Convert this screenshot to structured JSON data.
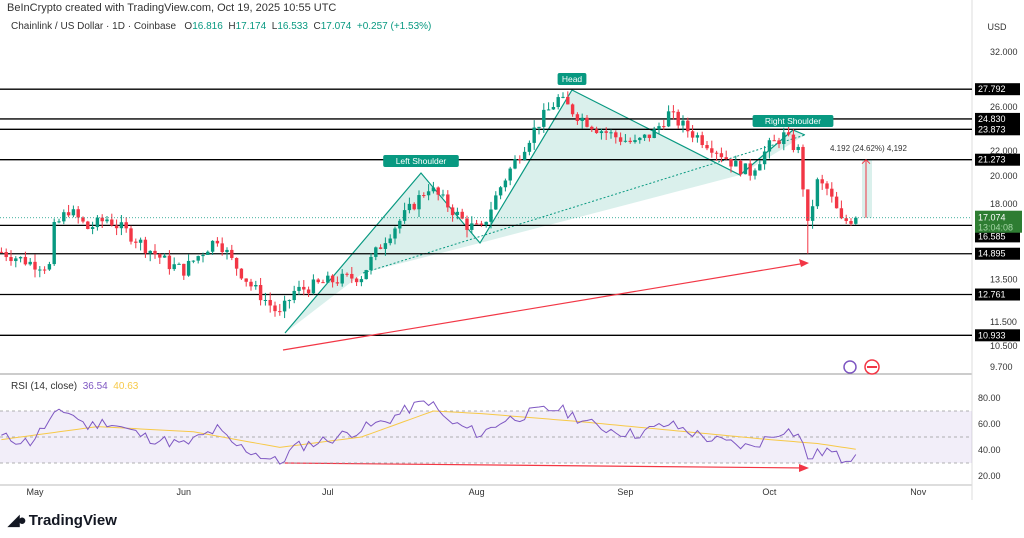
{
  "credit": "BeInCrypto created with TradingView.com, Oct 19, 2025 10:55 UTC",
  "legend": {
    "symbol": "Chainlink / US Dollar · 1D · Coinbase",
    "o_label": "O",
    "o": "16.816",
    "h_label": "H",
    "h": "17.174",
    "l_label": "L",
    "l": "16.533",
    "c_label": "C",
    "c": "17.074",
    "change": "+0.257 (+1.53%)"
  },
  "currency": "USD",
  "rsi": {
    "label": "RSI (14, close)",
    "value": "36.54",
    "ma": "40.63"
  },
  "logo": "TradingView",
  "chart_data": [
    {
      "type": "candlestick",
      "title": "Chainlink / US Dollar · 1D · Coinbase",
      "scale": "log",
      "ylim": [
        9.7,
        32
      ],
      "y_ticks": [
        "32.000",
        "26.000",
        "22.000",
        "20.000",
        "18.000",
        "13.500",
        "11.500",
        "10.500",
        "9.700"
      ],
      "x_ticks": [
        {
          "label": "May",
          "day": 7
        },
        {
          "label": "Jun",
          "day": 38
        },
        {
          "label": "Jul",
          "day": 68
        },
        {
          "label": "Aug",
          "day": 99
        },
        {
          "label": "Sep",
          "day": 130
        },
        {
          "label": "Oct",
          "day": 160
        },
        {
          "label": "Nov",
          "day": 191
        }
      ],
      "start": "Apr 24",
      "price_keyframes": [
        [
          0,
          15.0
        ],
        [
          6,
          14.4
        ],
        [
          10,
          14.2
        ],
        [
          11,
          16.4
        ],
        [
          14,
          17.6
        ],
        [
          18,
          16.4
        ],
        [
          22,
          17.0
        ],
        [
          26,
          16.2
        ],
        [
          30,
          15.3
        ],
        [
          35,
          14.3
        ],
        [
          38,
          14.0
        ],
        [
          45,
          15.8
        ],
        [
          48,
          14.5
        ],
        [
          52,
          13.2
        ],
        [
          58,
          11.8
        ],
        [
          61,
          12.9
        ],
        [
          68,
          13.4
        ],
        [
          75,
          13.7
        ],
        [
          80,
          15.8
        ],
        [
          85,
          17.6
        ],
        [
          89,
          19.2
        ],
        [
          93,
          17.9
        ],
        [
          97,
          16.6
        ],
        [
          100,
          16.3
        ],
        [
          104,
          19.2
        ],
        [
          108,
          21.8
        ],
        [
          112,
          24.5
        ],
        [
          116,
          26.8
        ],
        [
          120,
          25.2
        ],
        [
          124,
          24.0
        ],
        [
          128,
          23.2
        ],
        [
          132,
          22.6
        ],
        [
          136,
          23.6
        ],
        [
          139,
          25.3
        ],
        [
          143,
          23.8
        ],
        [
          148,
          22.4
        ],
        [
          153,
          20.8
        ],
        [
          156,
          20.3
        ],
        [
          160,
          22.4
        ],
        [
          163,
          23.3
        ],
        [
          166,
          22.0
        ],
        [
          168,
          16.5
        ],
        [
          170,
          19.5
        ],
        [
          172,
          19.0
        ],
        [
          175,
          16.8
        ],
        [
          178,
          17.07
        ]
      ],
      "horizontal_levels": [
        "27.792",
        "24.830",
        "23.873",
        "21.273",
        "16.585",
        "14.895",
        "12.761",
        "10.933"
      ],
      "last_price": "17.074",
      "countdown": "13:04:08",
      "annotations": {
        "left_shoulder": "Left Shoulder",
        "head": "Head",
        "right_shoulder": "Right Shoulder",
        "measure": "4.192 (24.62%) 4,192"
      }
    },
    {
      "type": "line",
      "title": "RSI (14, close)",
      "ylim": [
        20,
        80
      ],
      "y_ticks": [
        "80.00",
        "60.00",
        "40.00",
        "20.00"
      ],
      "band": [
        30,
        70
      ],
      "rsi_keyframes": [
        [
          0,
          50
        ],
        [
          6,
          46
        ],
        [
          11,
          66
        ],
        [
          14,
          70
        ],
        [
          18,
          58
        ],
        [
          22,
          62
        ],
        [
          30,
          50
        ],
        [
          38,
          44
        ],
        [
          45,
          56
        ],
        [
          48,
          45
        ],
        [
          58,
          30
        ],
        [
          61,
          42
        ],
        [
          68,
          48
        ],
        [
          80,
          62
        ],
        [
          85,
          72
        ],
        [
          89,
          78
        ],
        [
          93,
          62
        ],
        [
          100,
          52
        ],
        [
          104,
          62
        ],
        [
          112,
          70
        ],
        [
          116,
          72
        ],
        [
          124,
          58
        ],
        [
          132,
          52
        ],
        [
          139,
          60
        ],
        [
          148,
          48
        ],
        [
          156,
          42
        ],
        [
          163,
          56
        ],
        [
          166,
          52
        ],
        [
          168,
          34
        ],
        [
          172,
          40
        ],
        [
          175,
          33
        ],
        [
          178,
          36.5
        ]
      ],
      "ma_keyframes": [
        [
          0,
          48
        ],
        [
          20,
          58
        ],
        [
          40,
          54
        ],
        [
          58,
          42
        ],
        [
          75,
          50
        ],
        [
          90,
          70
        ],
        [
          100,
          68
        ],
        [
          120,
          62
        ],
        [
          140,
          55
        ],
        [
          160,
          48
        ],
        [
          170,
          45
        ],
        [
          178,
          40.6
        ]
      ]
    }
  ]
}
